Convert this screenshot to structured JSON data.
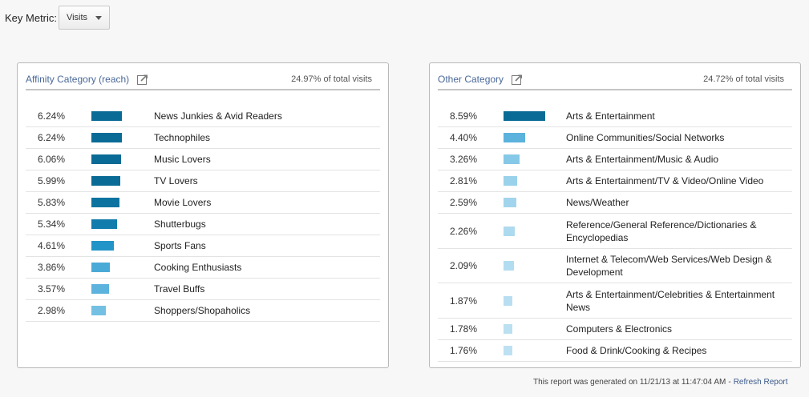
{
  "key_metric": {
    "label": "Key Metric:",
    "value": "Visits"
  },
  "affinity": {
    "title": "Affinity Category (reach)",
    "total": "24.97% of total visits",
    "rows": [
      {
        "pct": "6.24%",
        "label": "News Junkies & Avid Readers",
        "value": 6.24,
        "color": "#0a6b96"
      },
      {
        "pct": "6.24%",
        "label": "Technophiles",
        "value": 6.24,
        "color": "#0a6b96"
      },
      {
        "pct": "6.06%",
        "label": "Music Lovers",
        "value": 6.06,
        "color": "#0a6b96"
      },
      {
        "pct": "5.99%",
        "label": "TV Lovers",
        "value": 5.99,
        "color": "#0a6b96"
      },
      {
        "pct": "5.83%",
        "label": "Movie Lovers",
        "value": 5.83,
        "color": "#0c73a0"
      },
      {
        "pct": "5.34%",
        "label": "Shutterbugs",
        "value": 5.34,
        "color": "#127cad"
      },
      {
        "pct": "4.61%",
        "label": "Sports Fans",
        "value": 4.61,
        "color": "#2394c7"
      },
      {
        "pct": "3.86%",
        "label": "Cooking Enthusiasts",
        "value": 3.86,
        "color": "#4aaad7"
      },
      {
        "pct": "3.57%",
        "label": "Travel Buffs",
        "value": 3.57,
        "color": "#5cb3dd"
      },
      {
        "pct": "2.98%",
        "label": "Shoppers/Shopaholics",
        "value": 2.98,
        "color": "#74c0e3"
      }
    ]
  },
  "other": {
    "title": "Other Category",
    "total": "24.72% of total visits",
    "rows": [
      {
        "pct": "8.59%",
        "label": "Arts & Entertainment",
        "value": 8.59,
        "color": "#0a6b96"
      },
      {
        "pct": "4.40%",
        "label": "Online Communities/Social Networks",
        "value": 4.4,
        "color": "#5bb2dc"
      },
      {
        "pct": "3.26%",
        "label": "Arts & Entertainment/Music & Audio",
        "value": 3.26,
        "color": "#86c8e7"
      },
      {
        "pct": "2.81%",
        "label": "Arts & Entertainment/TV & Video/Online Video",
        "value": 2.81,
        "color": "#9ad1eb"
      },
      {
        "pct": "2.59%",
        "label": "News/Weather",
        "value": 2.59,
        "color": "#a2d5ed"
      },
      {
        "pct": "2.26%",
        "label": "Reference/General Reference/Dictionaries & Encyclopedias",
        "value": 2.26,
        "color": "#addaee"
      },
      {
        "pct": "2.09%",
        "label": "Internet & Telecom/Web Services/Web Design & Development",
        "value": 2.09,
        "color": "#b2dcf0"
      },
      {
        "pct": "1.87%",
        "label": "Arts & Entertainment/Celebrities & Entertainment News",
        "value": 1.87,
        "color": "#b8dff1"
      },
      {
        "pct": "1.78%",
        "label": "Computers & Electronics",
        "value": 1.78,
        "color": "#bbe0f1"
      },
      {
        "pct": "1.76%",
        "label": "Food & Drink/Cooking & Recipes",
        "value": 1.76,
        "color": "#bde1f2"
      }
    ]
  },
  "footer": {
    "generated": "This report was generated on 11/21/13 at 11:47:04 AM",
    "separator": "-",
    "refresh": "Refresh Report"
  }
}
